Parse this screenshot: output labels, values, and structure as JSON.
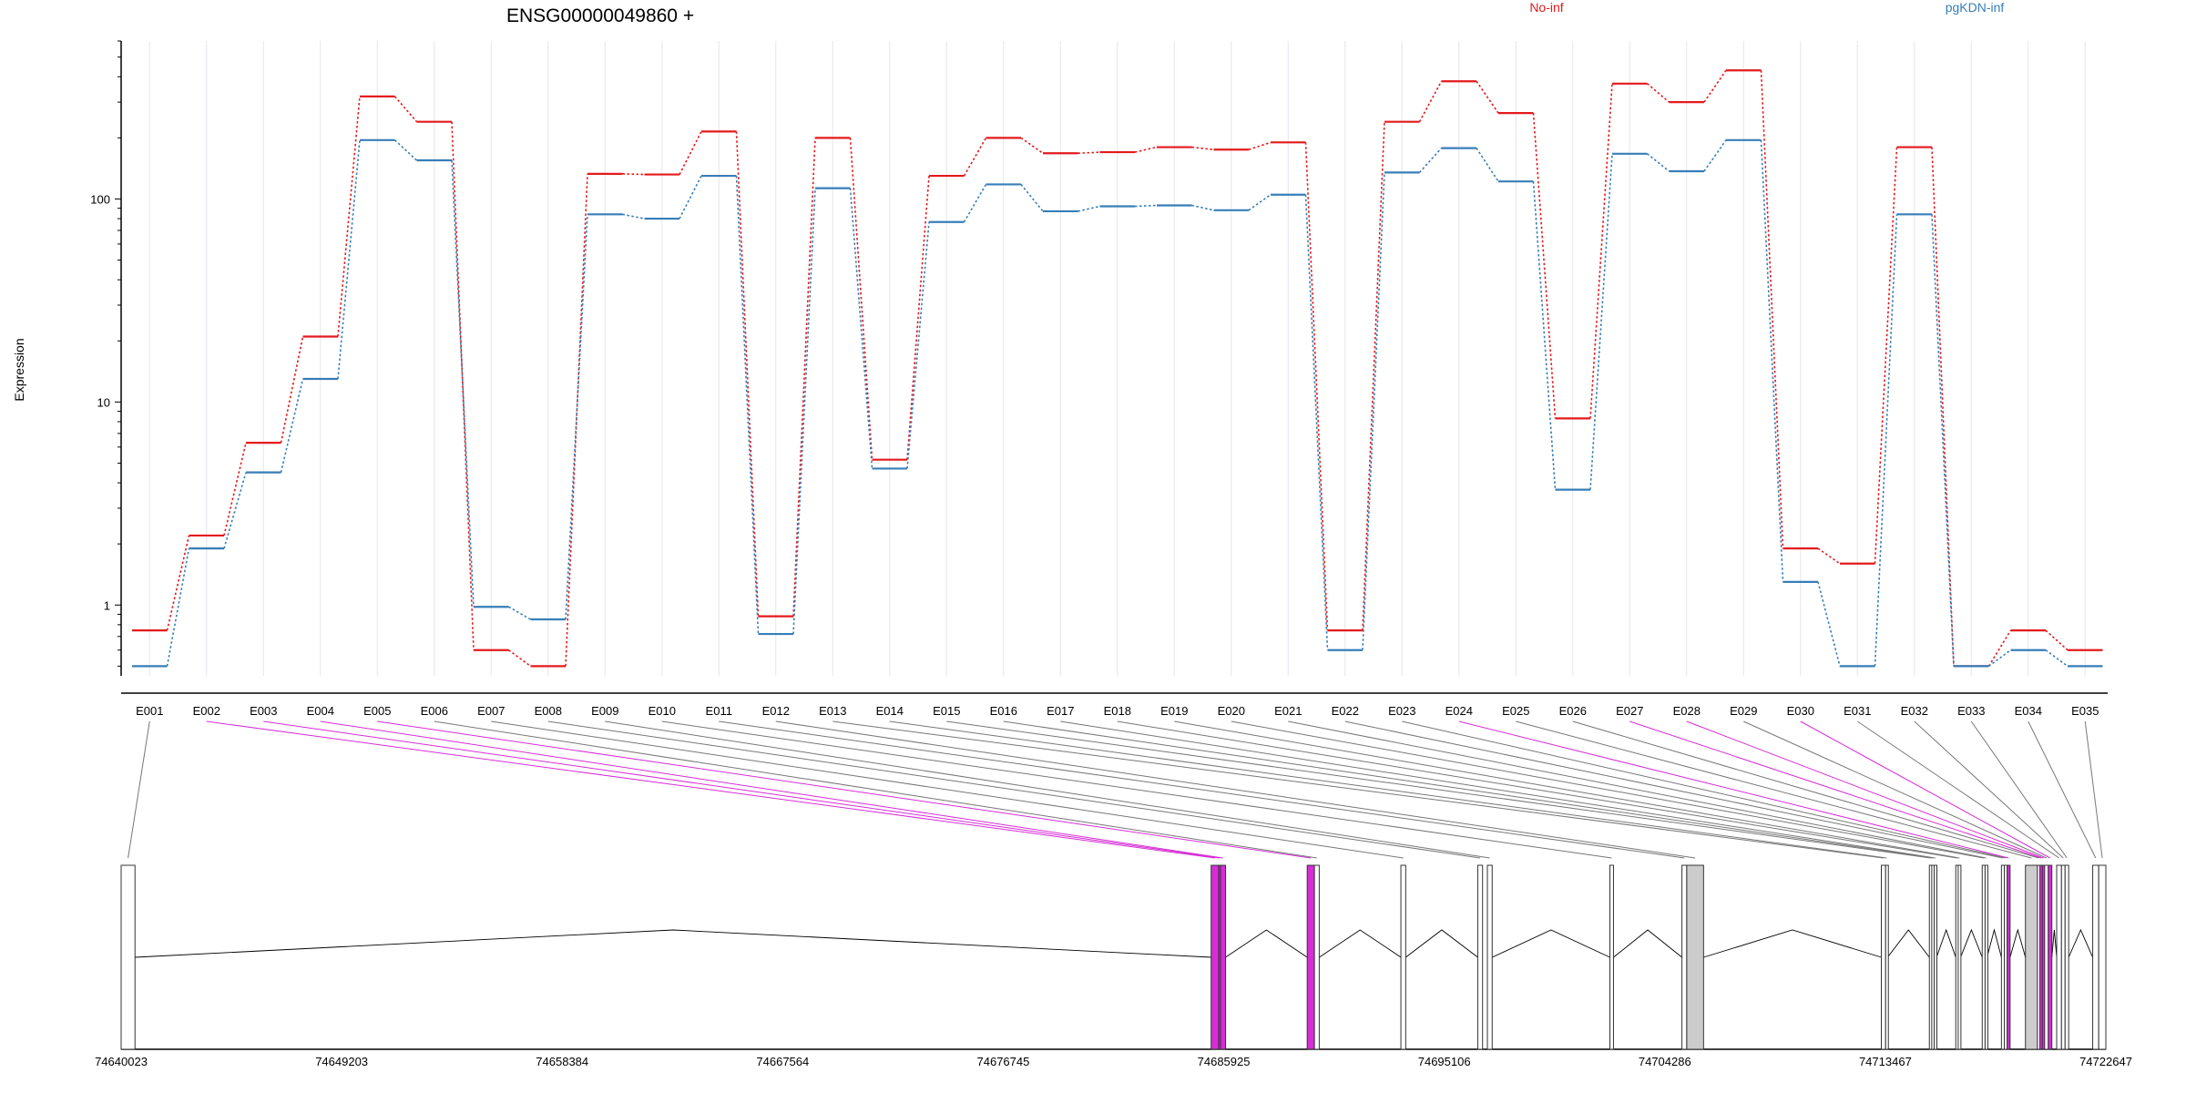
{
  "chart_data": {
    "type": "line",
    "title": "ENSG00000049860 +",
    "ylabel": "Expression",
    "xlabel": "",
    "y_scale": "log",
    "ylim": [
      0.5,
      600
    ],
    "y_ticks": [
      1,
      10,
      100
    ],
    "y_tick_labels": [
      "1",
      "10",
      "100"
    ],
    "grid": "vertical lines at each exon",
    "legend_placement": "top",
    "categories": [
      "E001",
      "E002",
      "E003",
      "E004",
      "E005",
      "E006",
      "E007",
      "E008",
      "E009",
      "E010",
      "E011",
      "E012",
      "E013",
      "E014",
      "E015",
      "E016",
      "E017",
      "E018",
      "E019",
      "E020",
      "E021",
      "E022",
      "E023",
      "E024",
      "E025",
      "E026",
      "E027",
      "E028",
      "E029",
      "E030",
      "E031",
      "E032",
      "E033",
      "E034",
      "E035"
    ],
    "series": [
      {
        "name": "No-inf",
        "color": "#e41a1c",
        "values": [
          0.75,
          2.2,
          6.3,
          21,
          320,
          240,
          0.6,
          0.5,
          133,
          132,
          215,
          0.88,
          200,
          5.2,
          130,
          200,
          168,
          170,
          180,
          175,
          190,
          0.75,
          240,
          380,
          265,
          8.3,
          370,
          300,
          430,
          1.9,
          1.6,
          180,
          0.5,
          0.75,
          0.6
        ]
      },
      {
        "name": "pgKDN-inf",
        "color": "#377eb8",
        "values": [
          0.5,
          1.9,
          4.5,
          13,
          195,
          155,
          0.98,
          0.85,
          84,
          80,
          130,
          0.72,
          113,
          4.7,
          77,
          118,
          87,
          92,
          93,
          88,
          105,
          0.6,
          135,
          178,
          122,
          3.7,
          167,
          137,
          195,
          1.3,
          0.5,
          84,
          0.5,
          0.6,
          0.5
        ]
      }
    ],
    "gene_model": {
      "coordinate_labels": [
        "74640023",
        "74649203",
        "74658384",
        "74667564",
        "74676745",
        "74685925",
        "74695106",
        "74704286",
        "74713467",
        "74722647"
      ],
      "coord_range": [
        74640023,
        74722647
      ],
      "highlight_color": "#d62dd6",
      "shaded_color": "#cccccc",
      "exons": [
        {
          "id": "E001",
          "start": 74640023,
          "end": 74640600,
          "fill": "none"
        },
        {
          "id": "E002",
          "start": 74685400,
          "end": 74685720,
          "fill": "highlight"
        },
        {
          "id": "E003",
          "start": 74685720,
          "end": 74685790,
          "fill": "highlight"
        },
        {
          "id": "E004",
          "start": 74685790,
          "end": 74686000,
          "fill": "highlight"
        },
        {
          "id": "E005",
          "start": 74689400,
          "end": 74689700,
          "fill": "highlight"
        },
        {
          "id": "E006",
          "start": 74689700,
          "end": 74689900,
          "fill": "none"
        },
        {
          "id": "E007",
          "start": 74693300,
          "end": 74693500,
          "fill": "none"
        },
        {
          "id": "E008",
          "start": 74696500,
          "end": 74696700,
          "fill": "none"
        },
        {
          "id": "E009",
          "start": 74696900,
          "end": 74697100,
          "fill": "none"
        },
        {
          "id": "E010",
          "start": 74702000,
          "end": 74702150,
          "fill": "none"
        },
        {
          "id": "E011",
          "start": 74705000,
          "end": 74705200,
          "fill": "none"
        },
        {
          "id": "E012",
          "start": 74705200,
          "end": 74705900,
          "fill": "shaded"
        },
        {
          "id": "E013",
          "start": 74713300,
          "end": 74713480,
          "fill": "none"
        },
        {
          "id": "E014",
          "start": 74713480,
          "end": 74713560,
          "fill": "none"
        },
        {
          "id": "E015",
          "start": 74715300,
          "end": 74715400,
          "fill": "none"
        },
        {
          "id": "E016",
          "start": 74715400,
          "end": 74715500,
          "fill": "none"
        },
        {
          "id": "E017",
          "start": 74715500,
          "end": 74715600,
          "fill": "none"
        },
        {
          "id": "E018",
          "start": 74716400,
          "end": 74716500,
          "fill": "none"
        },
        {
          "id": "E019",
          "start": 74716500,
          "end": 74716600,
          "fill": "none"
        },
        {
          "id": "E020",
          "start": 74717500,
          "end": 74717620,
          "fill": "none"
        },
        {
          "id": "E021",
          "start": 74717620,
          "end": 74717700,
          "fill": "none"
        },
        {
          "id": "E022",
          "start": 74718300,
          "end": 74718420,
          "fill": "none"
        },
        {
          "id": "E023",
          "start": 74718420,
          "end": 74718540,
          "fill": "none"
        },
        {
          "id": "E024",
          "start": 74718540,
          "end": 74718660,
          "fill": "highlight"
        },
        {
          "id": "E025",
          "start": 74719300,
          "end": 74719800,
          "fill": "shaded"
        },
        {
          "id": "E026",
          "start": 74719800,
          "end": 74719900,
          "fill": "none"
        },
        {
          "id": "E027",
          "start": 74719900,
          "end": 74720000,
          "fill": "highlight"
        },
        {
          "id": "E028",
          "start": 74720000,
          "end": 74720100,
          "fill": "highlight"
        },
        {
          "id": "E029",
          "start": 74720100,
          "end": 74720250,
          "fill": "none"
        },
        {
          "id": "E030",
          "start": 74720250,
          "end": 74720400,
          "fill": "highlight"
        },
        {
          "id": "E031",
          "start": 74720600,
          "end": 74720800,
          "fill": "none"
        },
        {
          "id": "E032",
          "start": 74720800,
          "end": 74720950,
          "fill": "none"
        },
        {
          "id": "E033",
          "start": 74720950,
          "end": 74721100,
          "fill": "none"
        },
        {
          "id": "E034",
          "start": 74722100,
          "end": 74722350,
          "fill": "none"
        },
        {
          "id": "E035",
          "start": 74722350,
          "end": 74722647,
          "fill": "none"
        }
      ],
      "introns": [
        [
          74640600,
          74685400
        ],
        [
          74686000,
          74689400
        ],
        [
          74689900,
          74693300
        ],
        [
          74693500,
          74696500
        ],
        [
          74697100,
          74702000
        ],
        [
          74702150,
          74705000
        ],
        [
          74705900,
          74713300
        ],
        [
          74713560,
          74715300
        ],
        [
          74715600,
          74716400
        ],
        [
          74716600,
          74717500
        ],
        [
          74717700,
          74718300
        ],
        [
          74718660,
          74719300
        ],
        [
          74720400,
          74720600
        ],
        [
          74721100,
          74722100
        ]
      ]
    }
  }
}
